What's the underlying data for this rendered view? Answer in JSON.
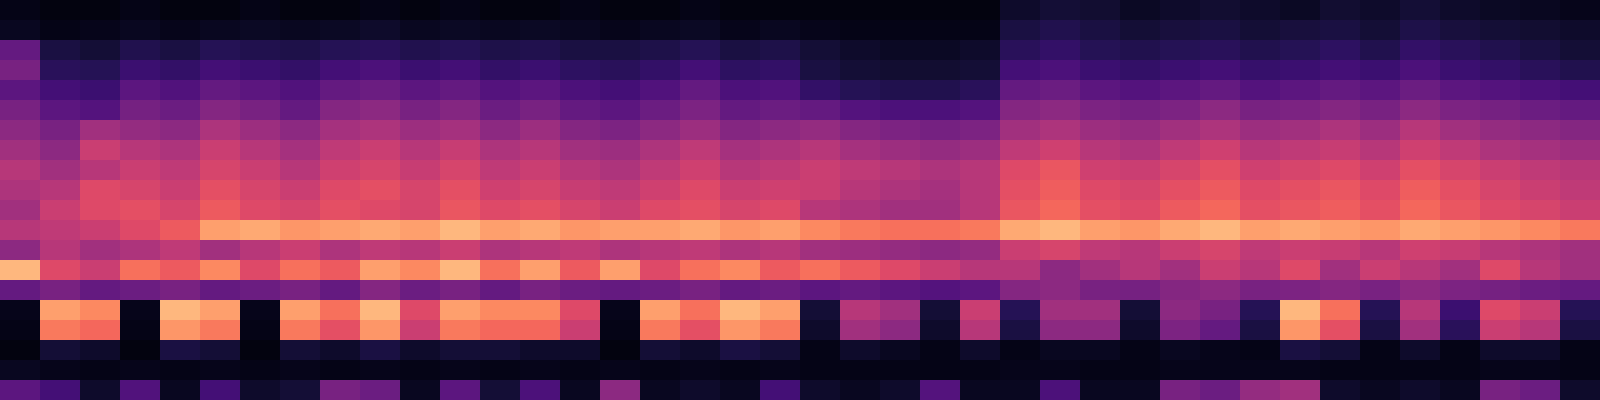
{
  "chart_data": {
    "type": "heatmap",
    "color": "magma",
    "zlim": [
      0,
      100
    ],
    "tick_labels": false,
    "cells": [
      [
        4,
        3,
        3,
        4,
        3,
        3,
        4,
        3,
        3,
        4,
        3,
        4,
        3,
        3,
        4,
        3,
        3,
        4,
        3,
        3,
        3,
        3,
        3,
        3,
        3,
        8,
        10,
        9,
        7,
        8,
        9,
        8,
        7,
        9,
        8,
        10,
        8,
        7,
        6,
        5
      ],
      [
        6,
        4,
        5,
        6,
        5,
        6,
        7,
        6,
        7,
        8,
        6,
        7,
        6,
        7,
        6,
        5,
        6,
        7,
        5,
        6,
        5,
        4,
        4,
        4,
        4,
        12,
        14,
        12,
        10,
        11,
        12,
        10,
        11,
        12,
        10,
        13,
        11,
        10,
        9,
        8
      ],
      [
        30,
        12,
        10,
        14,
        12,
        15,
        14,
        13,
        15,
        16,
        14,
        15,
        13,
        14,
        12,
        12,
        13,
        15,
        12,
        13,
        10,
        8,
        7,
        7,
        8,
        16,
        18,
        15,
        14,
        15,
        16,
        14,
        15,
        17,
        14,
        18,
        16,
        14,
        12,
        10
      ],
      [
        35,
        16,
        15,
        20,
        18,
        22,
        20,
        18,
        22,
        24,
        20,
        22,
        18,
        20,
        17,
        16,
        18,
        22,
        17,
        18,
        12,
        10,
        9,
        9,
        10,
        22,
        24,
        20,
        18,
        20,
        22,
        19,
        20,
        22,
        20,
        24,
        20,
        18,
        16,
        14
      ],
      [
        28,
        22,
        20,
        28,
        25,
        30,
        28,
        25,
        30,
        32,
        28,
        30,
        26,
        28,
        24,
        22,
        25,
        30,
        24,
        25,
        18,
        15,
        14,
        14,
        16,
        30,
        32,
        28,
        26,
        28,
        30,
        26,
        28,
        30,
        28,
        32,
        28,
        26,
        24,
        22
      ],
      [
        35,
        28,
        26,
        34,
        32,
        38,
        35,
        30,
        38,
        40,
        35,
        38,
        32,
        35,
        30,
        28,
        32,
        36,
        30,
        32,
        30,
        26,
        24,
        24,
        26,
        38,
        40,
        36,
        34,
        36,
        40,
        35,
        36,
        38,
        35,
        40,
        36,
        34,
        32,
        30
      ],
      [
        40,
        35,
        45,
        42,
        40,
        48,
        44,
        40,
        46,
        48,
        44,
        46,
        40,
        44,
        38,
        36,
        40,
        44,
        38,
        40,
        42,
        38,
        36,
        34,
        36,
        45,
        48,
        44,
        42,
        45,
        48,
        44,
        45,
        48,
        44,
        50,
        45,
        42,
        40,
        38
      ],
      [
        45,
        40,
        55,
        50,
        48,
        55,
        50,
        46,
        52,
        55,
        50,
        54,
        48,
        50,
        45,
        44,
        48,
        52,
        46,
        48,
        50,
        46,
        44,
        42,
        44,
        52,
        56,
        50,
        48,
        52,
        56,
        50,
        52,
        54,
        50,
        56,
        52,
        48,
        46,
        44
      ],
      [
        50,
        45,
        50,
        55,
        52,
        58,
        55,
        50,
        56,
        58,
        54,
        58,
        52,
        55,
        50,
        48,
        52,
        56,
        50,
        52,
        55,
        52,
        50,
        48,
        50,
        60,
        64,
        56,
        55,
        58,
        62,
        56,
        58,
        60,
        56,
        62,
        58,
        55,
        52,
        50
      ],
      [
        48,
        50,
        60,
        58,
        55,
        62,
        58,
        55,
        60,
        62,
        58,
        62,
        56,
        58,
        54,
        52,
        56,
        60,
        55,
        56,
        55,
        50,
        48,
        46,
        50,
        62,
        66,
        60,
        58,
        62,
        65,
        60,
        62,
        64,
        60,
        66,
        62,
        58,
        55,
        52
      ],
      [
        45,
        55,
        60,
        62,
        58,
        65,
        60,
        58,
        62,
        60,
        58,
        64,
        60,
        62,
        58,
        55,
        60,
        62,
        58,
        60,
        50,
        48,
        45,
        45,
        50,
        64,
        68,
        62,
        60,
        65,
        68,
        62,
        64,
        66,
        62,
        68,
        64,
        60,
        58,
        55
      ],
      [
        50,
        52,
        55,
        60,
        65,
        80,
        82,
        78,
        80,
        82,
        80,
        85,
        80,
        82,
        78,
        80,
        80,
        82,
        78,
        80,
        75,
        72,
        70,
        70,
        72,
        82,
        85,
        80,
        78,
        82,
        85,
        80,
        82,
        80,
        78,
        82,
        80,
        78,
        75,
        72
      ],
      [
        40,
        50,
        45,
        48,
        52,
        45,
        50,
        55,
        48,
        52,
        50,
        55,
        48,
        50,
        52,
        48,
        50,
        52,
        48,
        50,
        45,
        44,
        42,
        40,
        42,
        55,
        58,
        52,
        50,
        55,
        58,
        52,
        55,
        54,
        50,
        56,
        54,
        50,
        48,
        45
      ],
      [
        85,
        60,
        55,
        70,
        65,
        75,
        60,
        70,
        65,
        80,
        75,
        85,
        70,
        80,
        65,
        80,
        60,
        70,
        75,
        65,
        70,
        65,
        60,
        55,
        50,
        50,
        40,
        45,
        50,
        45,
        55,
        50,
        60,
        45,
        55,
        50,
        45,
        60,
        50,
        45
      ],
      [
        30,
        35,
        30,
        32,
        35,
        30,
        32,
        35,
        30,
        38,
        32,
        35,
        30,
        35,
        32,
        30,
        32,
        35,
        30,
        32,
        28,
        30,
        28,
        26,
        28,
        38,
        40,
        35,
        34,
        38,
        40,
        35,
        36,
        38,
        35,
        40,
        36,
        34,
        32,
        30
      ],
      [
        5,
        80,
        75,
        5,
        85,
        80,
        5,
        80,
        70,
        85,
        60,
        80,
        75,
        75,
        60,
        5,
        80,
        70,
        85,
        80,
        10,
        50,
        45,
        10,
        55,
        15,
        45,
        45,
        10,
        40,
        35,
        15,
        85,
        70,
        15,
        50,
        20,
        60,
        55,
        15
      ],
      [
        4,
        72,
        68,
        4,
        78,
        72,
        4,
        72,
        62,
        78,
        55,
        72,
        68,
        68,
        55,
        4,
        72,
        62,
        78,
        72,
        8,
        45,
        40,
        8,
        50,
        12,
        40,
        40,
        8,
        36,
        30,
        12,
        78,
        62,
        12,
        45,
        16,
        55,
        50,
        12
      ],
      [
        3,
        10,
        8,
        3,
        12,
        10,
        3,
        10,
        8,
        12,
        8,
        10,
        10,
        8,
        8,
        3,
        10,
        8,
        12,
        10,
        4,
        8,
        6,
        4,
        8,
        4,
        6,
        6,
        4,
        6,
        5,
        4,
        12,
        10,
        4,
        8,
        4,
        8,
        8,
        4
      ],
      [
        6,
        5,
        4,
        5,
        4,
        5,
        4,
        5,
        4,
        5,
        4,
        5,
        4,
        5,
        4,
        5,
        4,
        5,
        4,
        5,
        4,
        4,
        4,
        4,
        4,
        5,
        5,
        4,
        4,
        5,
        5,
        5,
        5,
        4,
        4,
        4,
        4,
        5,
        5,
        4
      ],
      [
        28,
        22,
        8,
        25,
        6,
        22,
        8,
        10,
        35,
        32,
        6,
        28,
        10,
        24,
        6,
        40,
        6,
        8,
        6,
        22,
        8,
        6,
        8,
        26,
        6,
        6,
        24,
        6,
        6,
        35,
        32,
        42,
        45,
        8,
        6,
        8,
        6,
        35,
        32,
        8
      ]
    ]
  }
}
